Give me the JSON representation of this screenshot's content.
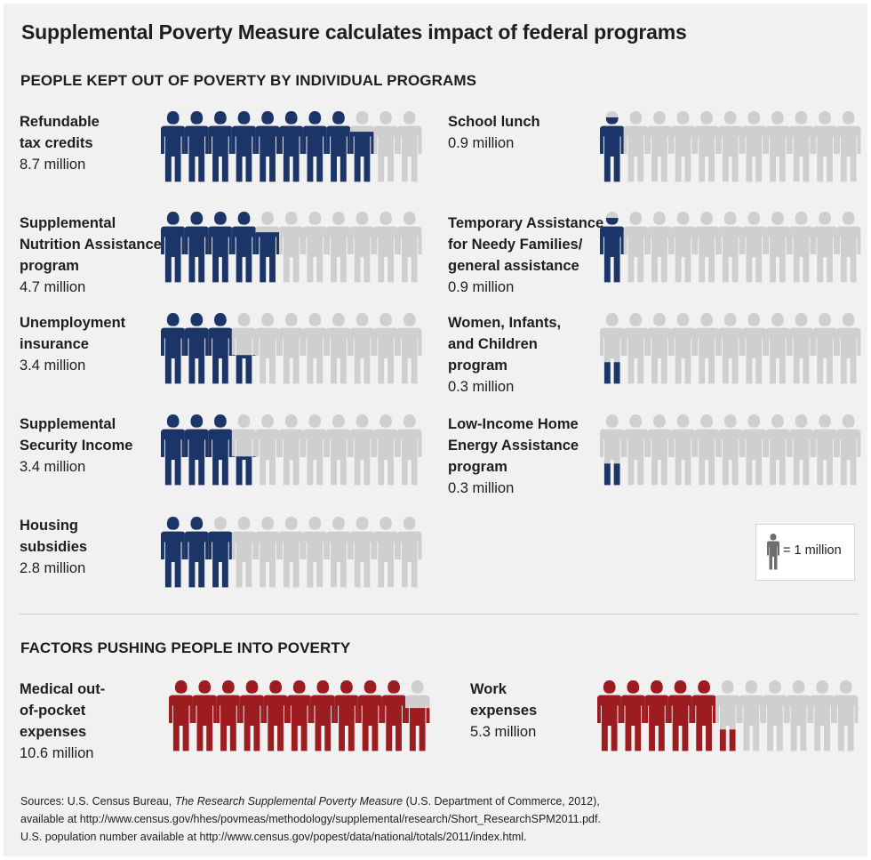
{
  "title": "Supplemental Poverty Measure calculates impact of federal programs",
  "section_kept_out": "PEOPLE KEPT OUT OF POVERTY BY INDIVIDUAL PROGRAMS",
  "section_pushing": "FACTORS PUSHING PEOPLE INTO POVERTY",
  "legend": {
    "text": "= 1 million",
    "icon": "person-icon",
    "unit_million": 1
  },
  "colors": {
    "programs": "#1b3568",
    "factors": "#9d1c20",
    "empty": "#cfcfcf",
    "legend_icon": "#6e6e6e"
  },
  "chart_data": [
    {
      "type": "pictograph",
      "title": "PEOPLE KEPT OUT OF POVERTY BY INDIVIDUAL PROGRAMS",
      "unit": "million people per figure",
      "items": [
        {
          "label_lines": [
            "Refundable",
            "tax credits"
          ],
          "value_text": "8.7 million",
          "value": 8.7,
          "total": 11
        },
        {
          "label_lines": [
            "Supplemental",
            "Nutrition Assistance",
            "program"
          ],
          "value_text": "4.7 million",
          "value": 4.7,
          "total": 11
        },
        {
          "label_lines": [
            "Unemployment",
            "insurance"
          ],
          "value_text": "3.4 million",
          "value": 3.4,
          "total": 11
        },
        {
          "label_lines": [
            "Supplemental",
            "Security Income"
          ],
          "value_text": "3.4 million",
          "value": 3.4,
          "total": 11
        },
        {
          "label_lines": [
            "Housing",
            "subsidies"
          ],
          "value_text": "2.8 million",
          "value": 2.8,
          "total": 11
        },
        {
          "label_lines": [
            "School lunch"
          ],
          "value_text": "0.9 million",
          "value": 0.9,
          "total": 11
        },
        {
          "label_lines": [
            "Temporary Assistance",
            "for Needy Families/",
            "general assistance"
          ],
          "value_text": "0.9 million",
          "value": 0.9,
          "total": 11
        },
        {
          "label_lines": [
            "Women, Infants,",
            "and Children",
            "program"
          ],
          "value_text": "0.3 million",
          "value": 0.3,
          "total": 11
        },
        {
          "label_lines": [
            "Low-Income Home",
            "Energy Assistance",
            "program"
          ],
          "value_text": "0.3 million",
          "value": 0.3,
          "total": 11
        }
      ]
    },
    {
      "type": "pictograph",
      "title": "FACTORS PUSHING PEOPLE INTO POVERTY",
      "unit": "million people per figure",
      "items": [
        {
          "label_lines": [
            "Medical out-",
            "of-pocket",
            "expenses"
          ],
          "value_text": "10.6 million",
          "value": 10.6,
          "total": 11
        },
        {
          "label_lines": [
            "Work",
            "expenses"
          ],
          "value_text": "5.3 million",
          "value": 5.3,
          "total": 11
        }
      ]
    }
  ],
  "sources": {
    "prefix": "Sources: U.S. Census Bureau, ",
    "report": "The Research Supplemental Poverty Measure",
    "suffix": " (U.S. Department of Commerce, 2012),",
    "line2": "available at http://www.census.gov/hhes/povmeas/methodology/supplemental/research/Short_ResearchSPM2011.pdf.",
    "line3": "U.S. population number available at http://www.census.gov/popest/data/national/totals/2011/index.html."
  }
}
